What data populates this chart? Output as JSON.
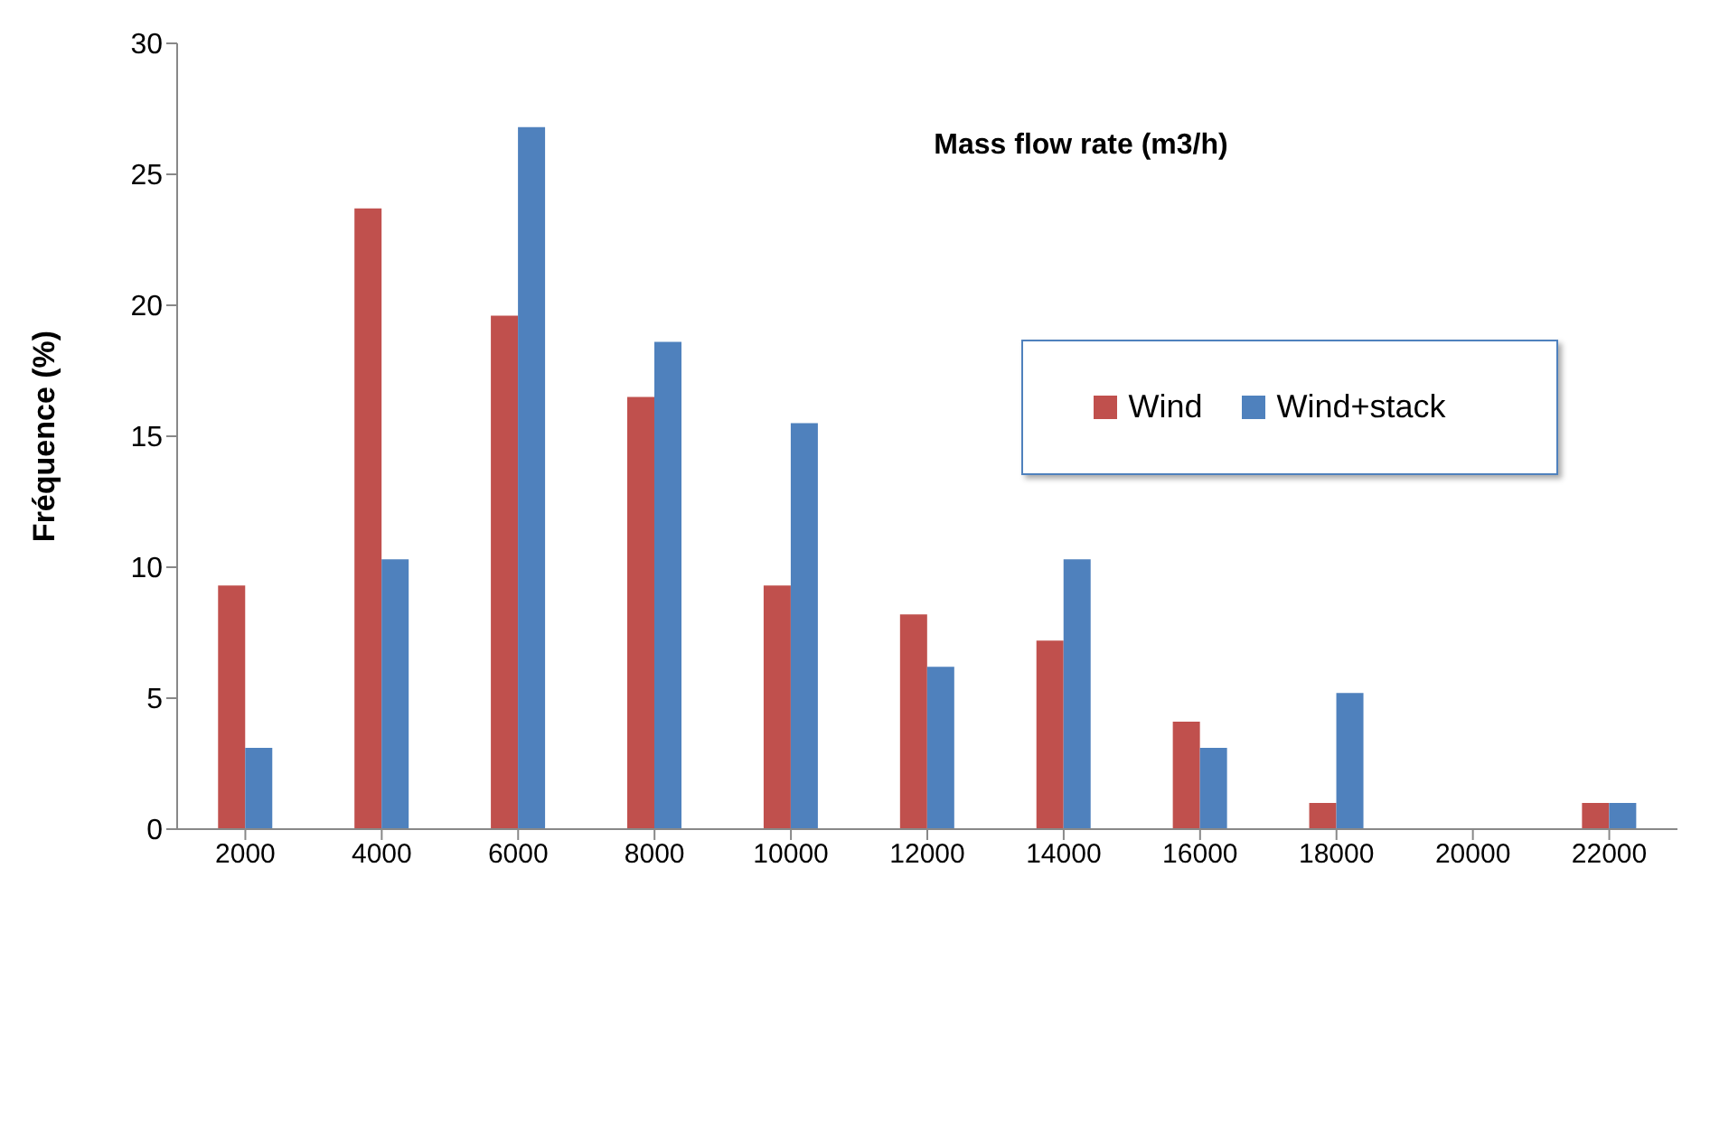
{
  "chart_data": {
    "type": "bar",
    "title": "Mass flow rate (m3/h)",
    "ylabel": "Fréquence (%)",
    "categories": [
      "2000",
      "4000",
      "6000",
      "8000",
      "10000",
      "12000",
      "14000",
      "16000",
      "18000",
      "20000",
      "22000"
    ],
    "series": [
      {
        "name": "Wind",
        "color": "#c0504d",
        "values": [
          9.3,
          23.7,
          19.6,
          16.5,
          9.3,
          8.2,
          7.2,
          4.1,
          1.0,
          0,
          1.0
        ]
      },
      {
        "name": "Wind+stack",
        "color": "#4f81bd",
        "values": [
          3.1,
          10.3,
          26.8,
          18.6,
          15.5,
          6.2,
          10.3,
          3.1,
          5.2,
          0,
          1.0
        ]
      }
    ],
    "ylim": [
      0,
      30
    ],
    "yticks": [
      0,
      5,
      10,
      15,
      20,
      25,
      30
    ],
    "grid": false,
    "legend": "top right"
  }
}
